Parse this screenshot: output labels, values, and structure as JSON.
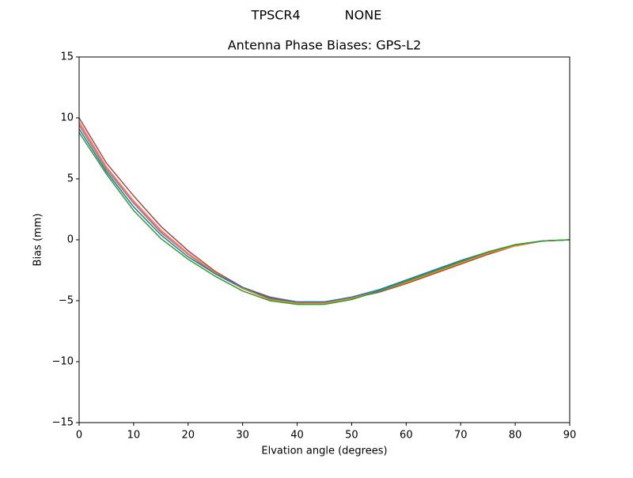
{
  "chart_data": {
    "type": "line",
    "suptitle": "TPSCR4           NONE",
    "title": "Antenna Phase Biases: GPS-L2",
    "x_label": "Elvation angle (degrees)",
    "y_label": "Bias (mm)",
    "x": [
      0,
      5,
      10,
      15,
      20,
      25,
      30,
      35,
      40,
      45,
      50,
      55,
      60,
      65,
      70,
      75,
      80,
      85,
      90
    ],
    "series": [
      {
        "color": "#8c564b",
        "values": [
          10.0,
          6.3,
          3.6,
          1.1,
          -0.9,
          -2.6,
          -3.9,
          -4.7,
          -5.1,
          -5.1,
          -4.8,
          -4.3,
          -3.6,
          -2.8,
          -2.0,
          -1.2,
          -0.5,
          -0.1,
          0
        ]
      },
      {
        "color": "#e377c2",
        "values": [
          9.7,
          6.0,
          3.2,
          0.8,
          -1.1,
          -2.7,
          -4.0,
          -4.8,
          -5.1,
          -5.1,
          -4.8,
          -4.2,
          -3.5,
          -2.7,
          -1.9,
          -1.1,
          -0.5,
          -0.1,
          0
        ]
      },
      {
        "color": "#9467bd",
        "values": [
          9.4,
          5.8,
          3.0,
          0.6,
          -1.2,
          -2.8,
          -4.0,
          -4.8,
          -5.2,
          -5.1,
          -4.8,
          -4.2,
          -3.4,
          -2.6,
          -1.8,
          -1.1,
          -0.5,
          -0.1,
          0
        ]
      },
      {
        "color": "#ff7f0e",
        "values": [
          9.5,
          5.9,
          3.1,
          0.7,
          -1.2,
          -2.7,
          -4.0,
          -4.9,
          -5.2,
          -5.2,
          -4.8,
          -4.2,
          -3.5,
          -2.7,
          -1.9,
          -1.1,
          -0.5,
          -0.1,
          0
        ]
      },
      {
        "color": "#1f77b4",
        "values": [
          9.1,
          5.6,
          2.7,
          0.4,
          -1.4,
          -2.8,
          -3.9,
          -4.8,
          -5.1,
          -5.1,
          -4.7,
          -4.1,
          -3.3,
          -2.5,
          -1.7,
          -1.0,
          -0.4,
          -0.1,
          0
        ]
      },
      {
        "color": "#2ca02c",
        "values": [
          8.8,
          5.4,
          2.4,
          0.1,
          -1.6,
          -3.0,
          -4.2,
          -5.0,
          -5.3,
          -5.3,
          -4.9,
          -4.2,
          -3.4,
          -2.6,
          -1.8,
          -1.0,
          -0.4,
          -0.1,
          0
        ]
      }
    ],
    "xlim": [
      0,
      90
    ],
    "xticks": [
      0,
      10,
      20,
      30,
      40,
      50,
      60,
      70,
      80,
      90
    ],
    "ylim": [
      -15,
      15
    ],
    "yticks": [
      {
        "value": -15,
        "label": "−15"
      },
      {
        "value": -10,
        "label": "−10"
      },
      {
        "value": -5,
        "label": "−5"
      },
      0,
      5,
      10,
      15
    ],
    "grid": false
  }
}
